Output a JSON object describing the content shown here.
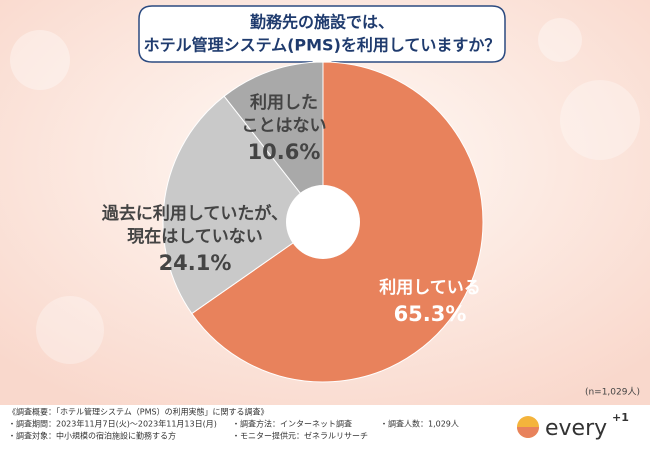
{
  "chart_data": {
    "type": "donut",
    "title_lines": [
      "勤務先の施設では、",
      "ホテル管理システム(PMS)を利用していますか？"
    ],
    "categories": [
      [
        "利用している"
      ],
      [
        "過去に利用していたが、",
        "現在はしていない"
      ],
      [
        "利用した",
        "ことはない"
      ]
    ],
    "values": [
      65.3,
      24.1,
      10.6
    ],
    "value_labels": [
      "65.3%",
      "24.1%",
      "10.6%"
    ],
    "colors": [
      "#e8825c",
      "#c9c9c9",
      "#a9a9a9"
    ],
    "note": "(n=1,029人)"
  },
  "footer": {
    "lines": [
      "《調査概要：「ホテル管理システム（PMS）の利用実態」に関する調査》",
      "・調査期間：2023年11月7日(火)～2023年11月13日(月)",
      "・調査方法：インターネット調査",
      "・調査人数：1,029人",
      "・調査対象：中小規模の宿泊施設に勤務する方",
      "・モニター提供元：ゼネラルリサーチ"
    ],
    "logo": "every",
    "logo_sup": "+1"
  }
}
